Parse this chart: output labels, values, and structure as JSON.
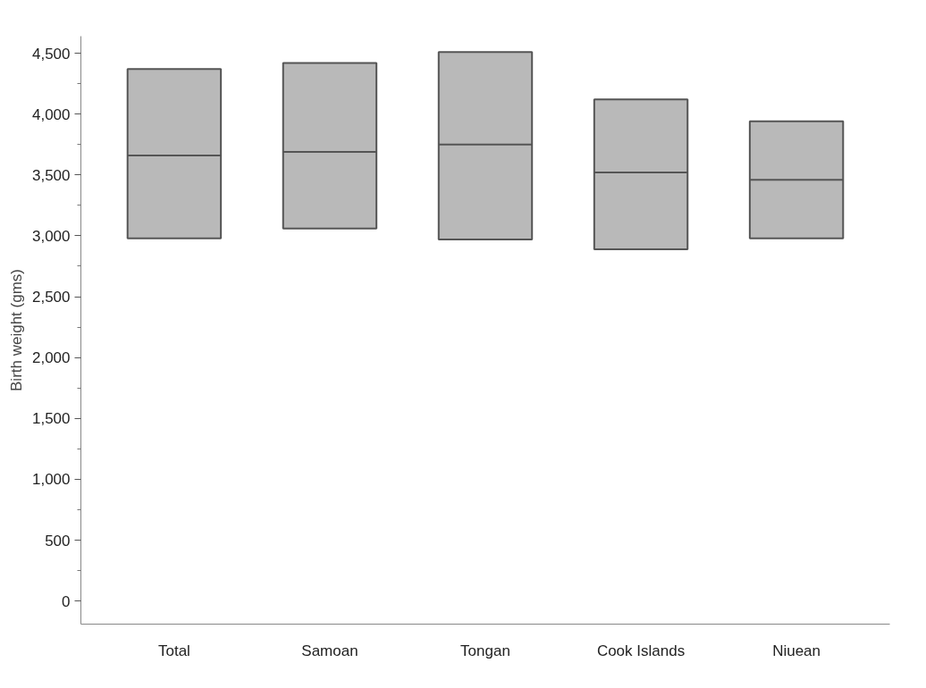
{
  "chart_data": {
    "type": "box",
    "ylabel": "Birth weight (gms)",
    "categories": [
      "Total",
      "Samoan",
      "Tongan",
      "Cook Islands",
      "Niuean"
    ],
    "boxes": [
      {
        "low": 2980,
        "q1": 2980,
        "median": 3660,
        "q3": 4370,
        "high": 4370
      },
      {
        "low": 3060,
        "q1": 3060,
        "median": 3690,
        "q3": 4420,
        "high": 4420
      },
      {
        "low": 2970,
        "q1": 2970,
        "median": 3750,
        "q3": 4510,
        "high": 4510
      },
      {
        "low": 2890,
        "q1": 2890,
        "median": 3520,
        "q3": 4120,
        "high": 4120
      },
      {
        "low": 2980,
        "q1": 2980,
        "median": 3460,
        "q3": 3940,
        "high": 3940
      }
    ],
    "color": "#b9b9b9",
    "ylim": [
      -190,
      4640
    ],
    "yticks": [
      0,
      {
        "value": 250,
        "label": null
      },
      {
        "value": 500,
        "label": "500"
      },
      {
        "value": 750,
        "label": null
      },
      {
        "value": 1000,
        "label": "1,000"
      },
      {
        "value": 1250,
        "label": null
      },
      {
        "value": 1500,
        "label": "1,500"
      },
      {
        "value": 1750,
        "label": null
      },
      {
        "value": 2000,
        "label": "2,000"
      },
      {
        "value": 2250,
        "label": null
      },
      {
        "value": 2500,
        "label": "2,500"
      },
      {
        "value": 2750,
        "label": null
      },
      {
        "value": 3000,
        "label": "3,000"
      },
      {
        "value": 3250,
        "label": null
      },
      {
        "value": 3500,
        "label": "3,500"
      },
      {
        "value": 3750,
        "label": null
      },
      {
        "value": 4000,
        "label": "4,000"
      },
      {
        "value": 4250,
        "label": null
      },
      {
        "value": 4500,
        "label": "4,500"
      }
    ],
    "grid": false
  }
}
